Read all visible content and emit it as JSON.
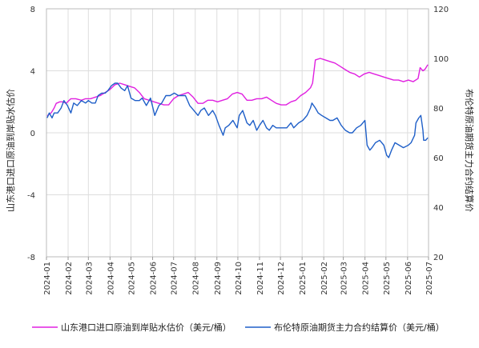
{
  "chart_data": {
    "type": "line",
    "title": "",
    "ylabel_left": "山东港口进口原油到岸贴水估价",
    "ylabel_right": "布伦特原油期货主力合约结算价",
    "ylim_left": [
      -8,
      8
    ],
    "ylim_right": [
      20,
      120
    ],
    "yticks_left": [
      "-8",
      "-4",
      "0",
      "4",
      "8"
    ],
    "yticks_right": [
      "20",
      "40",
      "60",
      "80",
      "100",
      "120"
    ],
    "x_ticks": [
      "2024-01",
      "2024-02",
      "2024-03",
      "2024-04",
      "2024-05",
      "2024-06",
      "2024-07",
      "2024-08",
      "2024-09",
      "2024-10",
      "2024-11",
      "2024-12",
      "2025-01",
      "2025-02",
      "2025-03",
      "2025-04",
      "2025-05",
      "2025-06",
      "2025-07"
    ],
    "grid": true,
    "legend_position": "bottom",
    "series": [
      {
        "name": "山东港口进口原油到岸贴水估价（美元/桶）",
        "axis": "left",
        "color": "#e020e0",
        "points": [
          [
            "2024-01-02",
            1.1
          ],
          [
            "2024-01-08",
            1.3
          ],
          [
            "2024-01-12",
            1.6
          ],
          [
            "2024-01-15",
            1.9
          ],
          [
            "2024-01-20",
            2.0
          ],
          [
            "2024-01-25",
            2.0
          ],
          [
            "2024-01-29",
            1.9
          ],
          [
            "2024-02-05",
            2.2
          ],
          [
            "2024-02-12",
            2.2
          ],
          [
            "2024-02-20",
            2.1
          ],
          [
            "2024-02-26",
            2.2
          ],
          [
            "2024-03-04",
            2.2
          ],
          [
            "2024-03-11",
            2.3
          ],
          [
            "2024-03-18",
            2.4
          ],
          [
            "2024-03-25",
            2.6
          ],
          [
            "2024-04-01",
            2.8
          ],
          [
            "2024-04-08",
            3.1
          ],
          [
            "2024-04-15",
            3.2
          ],
          [
            "2024-04-22",
            3.1
          ],
          [
            "2024-04-29",
            3.0
          ],
          [
            "2024-05-06",
            2.9
          ],
          [
            "2024-05-13",
            2.6
          ],
          [
            "2024-05-20",
            2.2
          ],
          [
            "2024-05-27",
            2.1
          ],
          [
            "2024-06-03",
            2.0
          ],
          [
            "2024-06-10",
            1.9
          ],
          [
            "2024-06-17",
            1.8
          ],
          [
            "2024-06-24",
            1.8
          ],
          [
            "2024-07-01",
            2.2
          ],
          [
            "2024-07-08",
            2.4
          ],
          [
            "2024-07-15",
            2.5
          ],
          [
            "2024-07-22",
            2.6
          ],
          [
            "2024-07-29",
            2.3
          ],
          [
            "2024-08-05",
            1.9
          ],
          [
            "2024-08-12",
            1.9
          ],
          [
            "2024-08-19",
            2.1
          ],
          [
            "2024-08-26",
            2.1
          ],
          [
            "2024-09-02",
            2.0
          ],
          [
            "2024-09-09",
            2.1
          ],
          [
            "2024-09-16",
            2.2
          ],
          [
            "2024-09-23",
            2.5
          ],
          [
            "2024-09-30",
            2.6
          ],
          [
            "2024-10-07",
            2.5
          ],
          [
            "2024-10-14",
            2.1
          ],
          [
            "2024-10-21",
            2.1
          ],
          [
            "2024-10-28",
            2.2
          ],
          [
            "2024-11-04",
            2.2
          ],
          [
            "2024-11-11",
            2.3
          ],
          [
            "2024-11-18",
            2.1
          ],
          [
            "2024-11-25",
            1.9
          ],
          [
            "2024-12-02",
            1.8
          ],
          [
            "2024-12-09",
            1.8
          ],
          [
            "2024-12-16",
            2.0
          ],
          [
            "2024-12-23",
            2.1
          ],
          [
            "2024-12-30",
            2.4
          ],
          [
            "2025-01-06",
            2.6
          ],
          [
            "2025-01-13",
            2.9
          ],
          [
            "2025-01-16",
            3.2
          ],
          [
            "2025-01-20",
            4.7
          ],
          [
            "2025-01-27",
            4.8
          ],
          [
            "2025-02-03",
            4.7
          ],
          [
            "2025-02-10",
            4.6
          ],
          [
            "2025-02-17",
            4.5
          ],
          [
            "2025-02-24",
            4.3
          ],
          [
            "2025-03-03",
            4.1
          ],
          [
            "2025-03-10",
            3.9
          ],
          [
            "2025-03-17",
            3.8
          ],
          [
            "2025-03-24",
            3.6
          ],
          [
            "2025-03-31",
            3.8
          ],
          [
            "2025-04-07",
            3.9
          ],
          [
            "2025-04-14",
            3.8
          ],
          [
            "2025-04-21",
            3.7
          ],
          [
            "2025-04-28",
            3.6
          ],
          [
            "2025-05-05",
            3.5
          ],
          [
            "2025-05-12",
            3.4
          ],
          [
            "2025-05-19",
            3.4
          ],
          [
            "2025-05-26",
            3.3
          ],
          [
            "2025-06-02",
            3.4
          ],
          [
            "2025-06-09",
            3.3
          ],
          [
            "2025-06-16",
            3.5
          ],
          [
            "2025-06-19",
            4.2
          ],
          [
            "2025-06-23",
            4.0
          ],
          [
            "2025-06-26",
            4.1
          ],
          [
            "2025-06-30",
            4.4
          ]
        ]
      },
      {
        "name": "布伦特原油期货主力合约结算价（美元/桶）",
        "axis": "right",
        "color": "#1f5fc8",
        "points": [
          [
            "2024-01-02",
            76
          ],
          [
            "2024-01-05",
            78
          ],
          [
            "2024-01-09",
            76
          ],
          [
            "2024-01-12",
            78
          ],
          [
            "2024-01-17",
            78
          ],
          [
            "2024-01-22",
            80
          ],
          [
            "2024-01-26",
            83
          ],
          [
            "2024-01-31",
            81
          ],
          [
            "2024-02-05",
            78
          ],
          [
            "2024-02-09",
            82
          ],
          [
            "2024-02-14",
            81
          ],
          [
            "2024-02-20",
            83
          ],
          [
            "2024-02-26",
            82
          ],
          [
            "2024-03-01",
            83
          ],
          [
            "2024-03-06",
            82
          ],
          [
            "2024-03-11",
            82
          ],
          [
            "2024-03-15",
            85
          ],
          [
            "2024-03-20",
            86
          ],
          [
            "2024-03-25",
            86
          ],
          [
            "2024-03-29",
            87
          ],
          [
            "2024-04-03",
            89
          ],
          [
            "2024-04-08",
            90
          ],
          [
            "2024-04-12",
            90
          ],
          [
            "2024-04-17",
            88
          ],
          [
            "2024-04-22",
            87
          ],
          [
            "2024-04-26",
            89
          ],
          [
            "2024-05-01",
            84
          ],
          [
            "2024-05-07",
            83
          ],
          [
            "2024-05-13",
            83
          ],
          [
            "2024-05-17",
            84
          ],
          [
            "2024-05-23",
            81
          ],
          [
            "2024-05-29",
            84
          ],
          [
            "2024-06-04",
            77
          ],
          [
            "2024-06-10",
            81
          ],
          [
            "2024-06-14",
            82
          ],
          [
            "2024-06-20",
            85
          ],
          [
            "2024-06-26",
            85
          ],
          [
            "2024-07-02",
            86
          ],
          [
            "2024-07-08",
            85
          ],
          [
            "2024-07-12",
            85
          ],
          [
            "2024-07-18",
            85
          ],
          [
            "2024-07-24",
            81
          ],
          [
            "2024-07-30",
            79
          ],
          [
            "2024-08-05",
            77
          ],
          [
            "2024-08-09",
            79
          ],
          [
            "2024-08-14",
            80
          ],
          [
            "2024-08-20",
            77
          ],
          [
            "2024-08-26",
            79
          ],
          [
            "2024-08-30",
            77
          ],
          [
            "2024-09-04",
            73
          ],
          [
            "2024-09-10",
            69
          ],
          [
            "2024-09-13",
            72
          ],
          [
            "2024-09-18",
            73
          ],
          [
            "2024-09-24",
            75
          ],
          [
            "2024-09-30",
            72
          ],
          [
            "2024-10-03",
            77
          ],
          [
            "2024-10-08",
            79
          ],
          [
            "2024-10-14",
            74
          ],
          [
            "2024-10-18",
            73
          ],
          [
            "2024-10-23",
            75
          ],
          [
            "2024-10-28",
            71
          ],
          [
            "2024-11-01",
            73
          ],
          [
            "2024-11-06",
            75
          ],
          [
            "2024-11-11",
            72
          ],
          [
            "2024-11-15",
            71
          ],
          [
            "2024-11-20",
            73
          ],
          [
            "2024-11-25",
            72
          ],
          [
            "2024-11-29",
            72
          ],
          [
            "2024-12-05",
            72
          ],
          [
            "2024-12-10",
            72
          ],
          [
            "2024-12-16",
            74
          ],
          [
            "2024-12-20",
            72
          ],
          [
            "2024-12-27",
            74
          ],
          [
            "2025-01-02",
            75
          ],
          [
            "2025-01-08",
            77
          ],
          [
            "2025-01-13",
            80
          ],
          [
            "2025-01-15",
            82
          ],
          [
            "2025-01-20",
            80
          ],
          [
            "2025-01-24",
            78
          ],
          [
            "2025-01-29",
            77
          ],
          [
            "2025-02-04",
            76
          ],
          [
            "2025-02-10",
            75
          ],
          [
            "2025-02-14",
            75
          ],
          [
            "2025-02-20",
            76
          ],
          [
            "2025-02-26",
            73
          ],
          [
            "2025-03-04",
            71
          ],
          [
            "2025-03-10",
            70
          ],
          [
            "2025-03-14",
            70
          ],
          [
            "2025-03-20",
            72
          ],
          [
            "2025-03-26",
            73
          ],
          [
            "2025-04-01",
            75
          ],
          [
            "2025-04-04",
            65
          ],
          [
            "2025-04-08",
            63
          ],
          [
            "2025-04-11",
            64
          ],
          [
            "2025-04-16",
            66
          ],
          [
            "2025-04-22",
            67
          ],
          [
            "2025-04-28",
            65
          ],
          [
            "2025-05-02",
            61
          ],
          [
            "2025-05-05",
            60
          ],
          [
            "2025-05-09",
            63
          ],
          [
            "2025-05-14",
            66
          ],
          [
            "2025-05-20",
            65
          ],
          [
            "2025-05-26",
            64
          ],
          [
            "2025-06-02",
            65
          ],
          [
            "2025-06-06",
            66
          ],
          [
            "2025-06-11",
            69
          ],
          [
            "2025-06-13",
            74
          ],
          [
            "2025-06-17",
            76
          ],
          [
            "2025-06-20",
            77
          ],
          [
            "2025-06-23",
            71
          ],
          [
            "2025-06-24",
            67
          ],
          [
            "2025-06-27",
            67
          ],
          [
            "2025-06-30",
            68
          ]
        ]
      }
    ]
  }
}
